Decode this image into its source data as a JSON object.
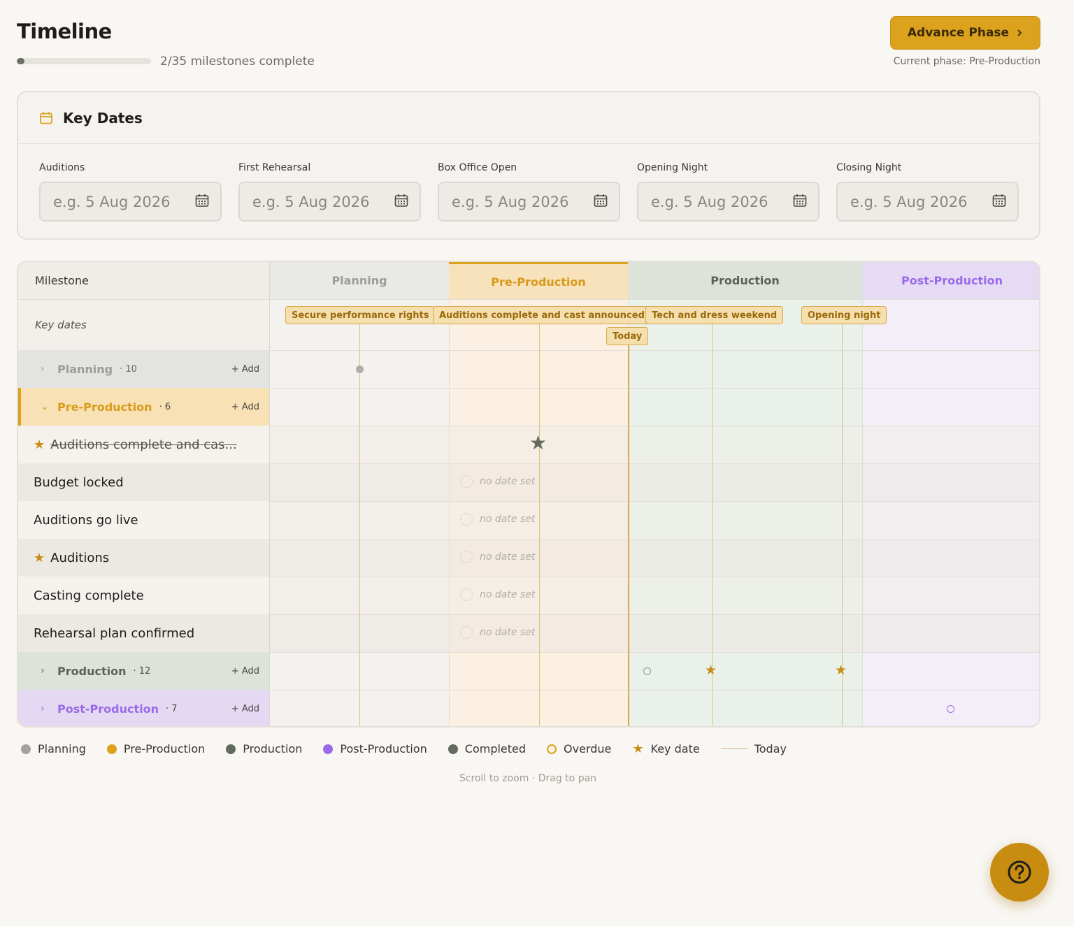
{
  "header": {
    "title": "Timeline",
    "progress_text": "2/35 milestones complete",
    "progress_fraction": 0.057,
    "advance_label": "Advance Phase",
    "current_phase": "Current phase: Pre-Production"
  },
  "key_dates": {
    "title": "Key Dates",
    "fields": [
      {
        "label": "Auditions",
        "placeholder": "e.g. 5 Aug 2026"
      },
      {
        "label": "First Rehearsal",
        "placeholder": "e.g. 5 Aug 2026"
      },
      {
        "label": "Box Office Open",
        "placeholder": "e.g. 5 Aug 2026"
      },
      {
        "label": "Opening Night",
        "placeholder": "e.g. 5 Aug 2026"
      },
      {
        "label": "Closing Night",
        "placeholder": "e.g. 5 Aug 2026"
      }
    ]
  },
  "timeline": {
    "milestone_header": "Milestone",
    "key_dates_label": "Key dates",
    "phases": [
      "Planning",
      "Pre-Production",
      "Production",
      "Post-Production"
    ],
    "key_date_chips": [
      "Secure performance rights",
      "Auditions complete and cast announced",
      "Tech and dress weekend",
      "Opening night"
    ],
    "today_label": "Today",
    "groups": [
      {
        "name": "Planning",
        "count": "· 10",
        "add": "+ Add"
      },
      {
        "name": "Pre-Production",
        "count": "· 6",
        "add": "+ Add"
      },
      {
        "name": "Production",
        "count": "· 12",
        "add": "+ Add"
      },
      {
        "name": "Post-Production",
        "count": "· 7",
        "add": "+ Add"
      }
    ],
    "milestones": [
      {
        "name": "Auditions complete and cas...",
        "key": true,
        "completed": true
      },
      {
        "name": "Budget locked",
        "key": false,
        "status": "no date set"
      },
      {
        "name": "Auditions go live",
        "key": false,
        "status": "no date set"
      },
      {
        "name": "Auditions",
        "key": true,
        "status": "no date set"
      },
      {
        "name": "Casting complete",
        "key": false,
        "status": "no date set"
      },
      {
        "name": "Rehearsal plan confirmed",
        "key": false,
        "status": "no date set"
      }
    ]
  },
  "legend": [
    {
      "label": "Planning",
      "color": "#a3a29e"
    },
    {
      "label": "Pre-Production",
      "color": "#dda21d"
    },
    {
      "label": "Production",
      "color": "#5f6b5c"
    },
    {
      "label": "Post-Production",
      "color": "#9b6ae8"
    },
    {
      "label": "Completed",
      "color": "#666b62"
    },
    {
      "label": "Overdue",
      "color": "#dda21d"
    },
    {
      "label": "Key date",
      "color": "#c88d10"
    },
    {
      "label": "Today",
      "color": "#d1b27a"
    }
  ],
  "hint": "Scroll to zoom · Drag to pan",
  "colors": {
    "accent": "#dda21d",
    "planning": "#a3a29e",
    "pre_production": "#dda21d",
    "production": "#5f6b5c",
    "post_production": "#9b6ae8"
  }
}
